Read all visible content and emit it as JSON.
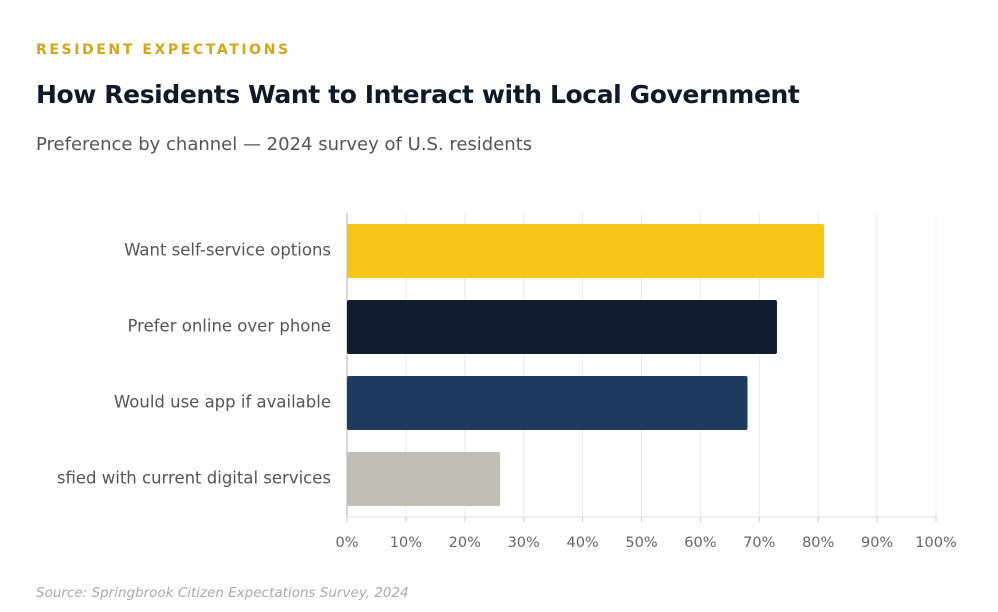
{
  "chart_data": {
    "type": "bar",
    "orientation": "horizontal",
    "eyebrow": "RESIDENT EXPECTATIONS",
    "title": "How Residents Want to Interact with Local Government",
    "subtitle": "Preference by channel — 2024 survey of U.S. residents",
    "categories": [
      "Want self-service options",
      "Prefer online over phone",
      "Would use app if available",
      "sfied with current digital services"
    ],
    "values": [
      81,
      73,
      68,
      26
    ],
    "colors": [
      "#f5c518",
      "#111d2e",
      "#1e3a5f",
      "#c0bdb4"
    ],
    "xlim": [
      0,
      100
    ],
    "xticks": [
      {
        "value": 0,
        "label": "0%"
      },
      {
        "value": 10,
        "label": "10%"
      },
      {
        "value": 20,
        "label": "20%"
      },
      {
        "value": 30,
        "label": "30%"
      },
      {
        "value": 40,
        "label": "40%"
      },
      {
        "value": 50,
        "label": "50%"
      },
      {
        "value": 60,
        "label": "60%"
      },
      {
        "value": 70,
        "label": "70%"
      },
      {
        "value": 80,
        "label": "80%"
      },
      {
        "value": 90,
        "label": "90%"
      },
      {
        "value": 100,
        "label": "100%"
      }
    ],
    "grid": true,
    "source": "Source: Springbrook Citizen Expectations Survey, 2024"
  }
}
